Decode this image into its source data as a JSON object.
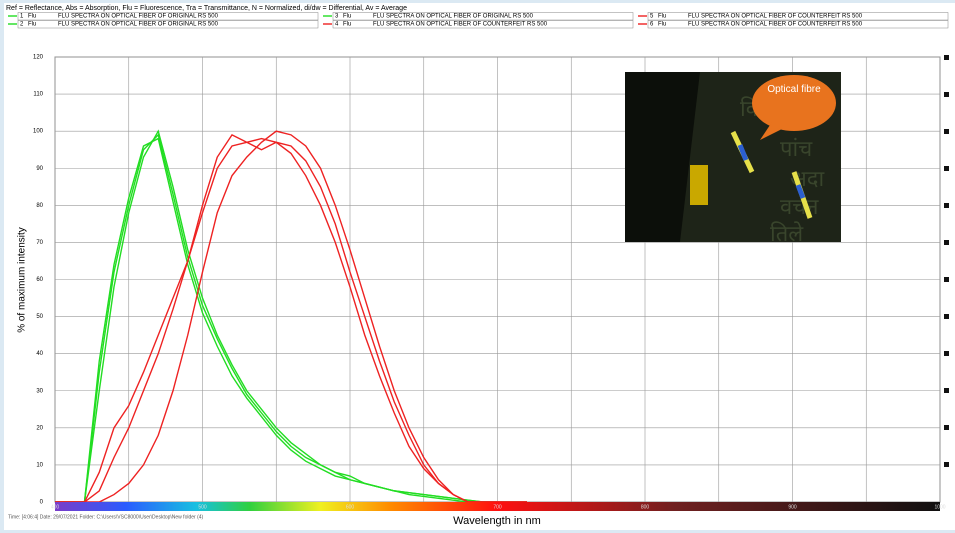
{
  "chart_data": {
    "type": "line",
    "header": "Ref = Reflectance, Abs = Absorption, Flu = Fluorescence, Tra = Transmittance, N = Normalized, di/dw = Differential, Av = Average",
    "xlabel": "Wavelength in nm",
    "ylabel": "% of maximum intensity",
    "footer": "Time: [4:06:4]    Date: 29/07/2021    Folder: C:\\Users\\VSC8000\\User\\Desktop\\New folder (4)",
    "inset_label": "Optical fibre",
    "x": [
      400,
      410,
      420,
      430,
      440,
      450,
      460,
      470,
      480,
      490,
      500,
      510,
      520,
      530,
      540,
      550,
      560,
      570,
      580,
      590,
      600,
      610,
      620,
      630,
      640,
      650,
      660,
      670,
      680,
      690,
      700,
      710,
      720
    ],
    "series": [
      {
        "id": "1",
        "mode": "Flu",
        "name": "FLU SPECTRA ON OPTICAL FIBER OF ORIGINAL RS 500",
        "color": "#22dd22",
        "values": [
          0,
          0,
          0,
          35,
          62,
          80,
          95,
          99,
          83,
          66,
          53,
          44,
          36,
          29,
          24,
          19,
          15,
          12,
          10,
          8,
          6,
          5,
          4,
          3,
          2.5,
          2,
          1.5,
          1,
          0.5,
          0,
          0,
          0,
          0
        ]
      },
      {
        "id": "2",
        "mode": "Flu",
        "name": "FLU SPECTRA ON OPTICAL FIBER OF ORIGINAL RS 500",
        "color": "#22dd22",
        "values": [
          0,
          0,
          0,
          30,
          58,
          78,
          93,
          100,
          85,
          68,
          55,
          45,
          37,
          30,
          25,
          20,
          16,
          13,
          10,
          8,
          7,
          5,
          4,
          3,
          2.5,
          2,
          1.5,
          1,
          0.5,
          0,
          0,
          0,
          0
        ]
      },
      {
        "id": "3",
        "mode": "Flu",
        "name": "FLU SPECTRA ON OPTICAL FIBER OF ORIGINAL RS 500",
        "color": "#22dd22",
        "values": [
          0,
          0,
          0,
          38,
          64,
          82,
          96,
          98,
          81,
          64,
          51,
          42,
          34,
          28,
          23,
          18,
          14,
          11,
          9,
          7,
          6,
          5,
          4,
          3,
          2,
          1.5,
          1,
          0.5,
          0,
          0,
          0,
          0,
          0
        ]
      },
      {
        "id": "4",
        "mode": "Flu",
        "name": "FLU SPECTRA ON OPTICAL FIBER OF COUNTERFEIT RS 500",
        "color": "#ee2222",
        "values": [
          0,
          0,
          0,
          8,
          20,
          26,
          35,
          45,
          55,
          65,
          78,
          90,
          96,
          97,
          98,
          97,
          94,
          88,
          80,
          70,
          58,
          45,
          34,
          24,
          15,
          9,
          5,
          2,
          0,
          0,
          0,
          0,
          0
        ]
      },
      {
        "id": "5",
        "mode": "Flu",
        "name": "FLU SPECTRA ON OPTICAL FIBER OF COUNTERFEIT RS 500",
        "color": "#ee2222",
        "values": [
          0,
          0,
          0,
          0,
          2,
          5,
          10,
          18,
          30,
          45,
          62,
          78,
          88,
          93,
          97,
          100,
          99,
          96,
          90,
          80,
          68,
          55,
          42,
          30,
          20,
          12,
          6,
          2,
          0,
          0,
          0,
          0,
          0
        ]
      },
      {
        "id": "6",
        "mode": "Flu",
        "name": "FLU SPECTRA ON OPTICAL FIBER OF COUNTERFEIT RS 500",
        "color": "#ee2222",
        "values": [
          0,
          0,
          0,
          3,
          12,
          20,
          30,
          40,
          52,
          65,
          80,
          93,
          99,
          97,
          95,
          97,
          96,
          92,
          85,
          75,
          62,
          50,
          38,
          27,
          18,
          10,
          5,
          2,
          0,
          0,
          0,
          0,
          0
        ]
      }
    ],
    "xlim": [
      400,
      1000
    ],
    "xticks": [
      400,
      500,
      600,
      700,
      800,
      900,
      1000
    ],
    "xminorticks": [
      450,
      550,
      650,
      750,
      850,
      950
    ],
    "ylim": [
      0,
      120
    ],
    "yticks": [
      0,
      10,
      20,
      30,
      40,
      50,
      60,
      70,
      80,
      90,
      100,
      110,
      120
    ],
    "grid": true
  }
}
